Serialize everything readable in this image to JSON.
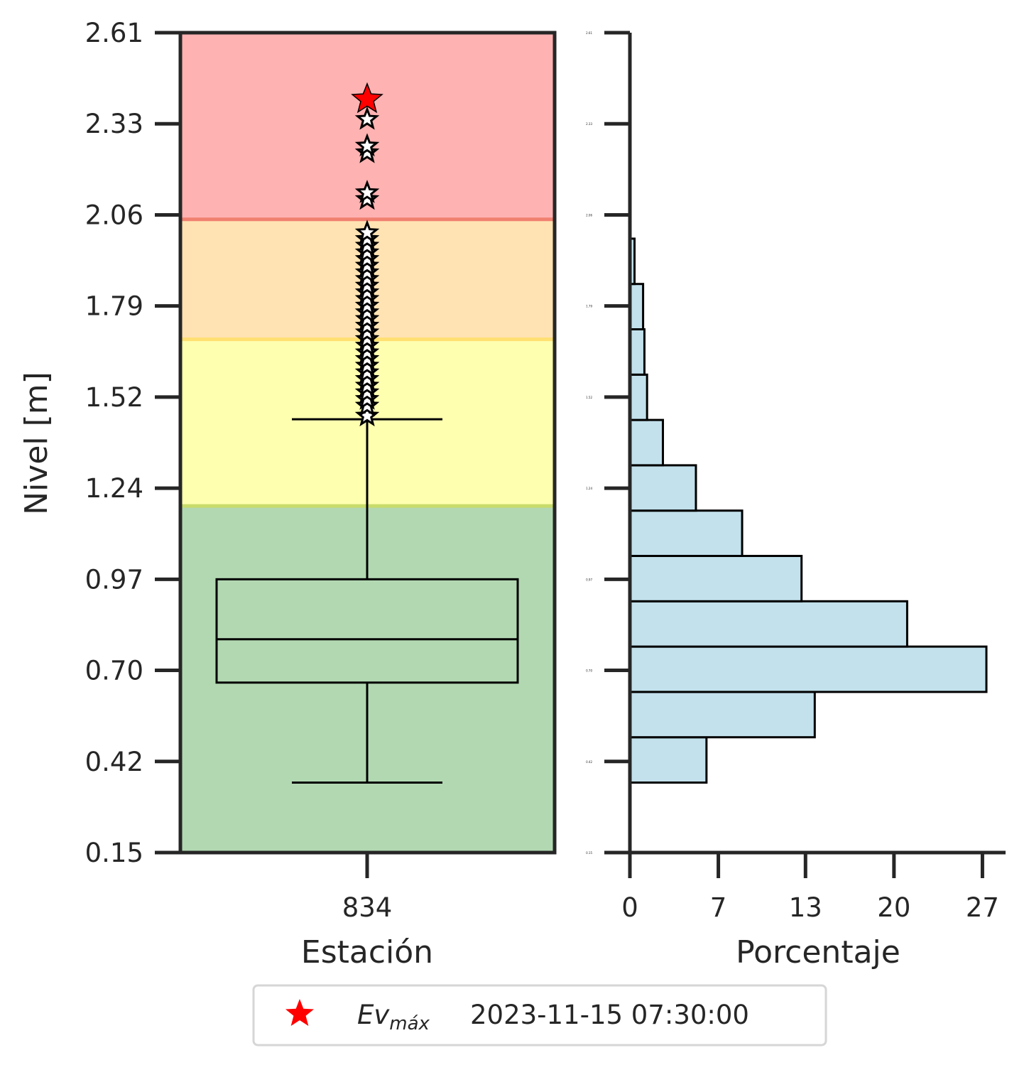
{
  "chart_data": [
    {
      "type": "box",
      "xlabel": "Estación",
      "ylabel": "Nivel [m]",
      "categories": [
        "834"
      ],
      "ylim": [
        0.15,
        2.61
      ],
      "yticks": [
        "0.15",
        "0.42",
        "0.70",
        "0.97",
        "1.24",
        "1.52",
        "1.79",
        "2.06",
        "2.33",
        "2.61"
      ],
      "bands": [
        {
          "from": 0.15,
          "to": 1.19,
          "color": "#b2d8b2"
        },
        {
          "from": 1.19,
          "to": 1.69,
          "color": "#ffffb0"
        },
        {
          "from": 1.69,
          "to": 2.05,
          "color": "#ffe3b3"
        },
        {
          "from": 2.05,
          "to": 2.61,
          "color": "#ffb2b2"
        }
      ],
      "band_lines": [
        {
          "value": 1.19,
          "color": "#c8dc6a"
        },
        {
          "value": 1.69,
          "color": "#ffe070"
        },
        {
          "value": 2.05,
          "color": "#f08070"
        }
      ],
      "box": {
        "whisker_low": 0.36,
        "q1": 0.66,
        "median": 0.79,
        "q3": 0.97,
        "whisker_high": 1.45
      },
      "outliers": [
        1.46,
        1.49,
        1.51,
        1.53,
        1.55,
        1.57,
        1.59,
        1.61,
        1.63,
        1.65,
        1.67,
        1.69,
        1.71,
        1.73,
        1.75,
        1.77,
        1.79,
        1.81,
        1.83,
        1.85,
        1.87,
        1.89,
        1.91,
        1.93,
        1.95,
        1.97,
        1.99,
        2.01,
        2.11,
        2.13,
        2.25,
        2.27,
        2.35
      ],
      "max_event": {
        "value": 2.41,
        "color": "#ff0000"
      }
    },
    {
      "type": "bar",
      "orientation": "horizontal",
      "xlabel": "Porcentaje",
      "xlim": [
        0,
        28
      ],
      "xticks": [
        "0",
        "7",
        "13",
        "20",
        "27"
      ],
      "xtick_values": [
        0,
        6.7,
        13.3,
        20,
        26.7
      ],
      "ylim": [
        0.15,
        2.61
      ],
      "ytick_labels": [
        "0.15",
        "0.42",
        "0.70",
        "0.97",
        "1.24",
        "1.52",
        "1.79",
        "2.06",
        "2.33",
        "2.61"
      ],
      "bin_edges": [
        0.36,
        0.496,
        0.632,
        0.768,
        0.904,
        1.04,
        1.176,
        1.312,
        1.448,
        1.584,
        1.72,
        1.856,
        1.992
      ],
      "values": [
        5.8,
        14.0,
        27.0,
        21.0,
        13.0,
        8.5,
        5.0,
        2.5,
        1.3,
        1.1,
        1.0,
        0.35
      ],
      "bar_color": "#c2e1ec"
    }
  ],
  "legend": {
    "label_main": "Ev",
    "label_sub": "máx",
    "label_date": "2023-11-15 07:30:00",
    "marker_color": "#ff0000"
  }
}
